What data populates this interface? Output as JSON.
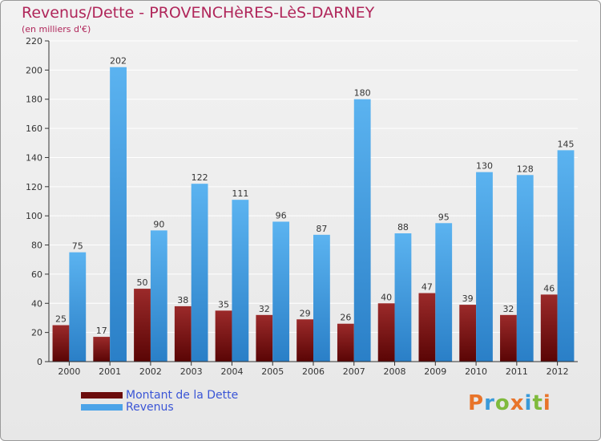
{
  "title": "Revenus/Dette - PROVENCHèRES-LèS-DARNEY",
  "subtitle": "(en milliers d'€)",
  "legend": [
    {
      "label": "Montant de la Dette",
      "color": "#6b0c0c"
    },
    {
      "label": "Revenus",
      "color": "#4ba3e8"
    }
  ],
  "logo": {
    "text": "Proxiti"
  },
  "colors": {
    "dette_top": "#9b2a2a",
    "dette_bottom": "#5a0505",
    "revenus_top": "#5bb3f0",
    "revenus_bottom": "#2a7fc7",
    "axis": "#333333",
    "grid": "#ffffff"
  },
  "chart_data": {
    "type": "bar",
    "categories": [
      "2000",
      "2001",
      "2002",
      "2003",
      "2004",
      "2005",
      "2006",
      "2007",
      "2008",
      "2009",
      "2010",
      "2011",
      "2012"
    ],
    "series": [
      {
        "name": "Montant de la Dette",
        "values": [
          25,
          17,
          50,
          38,
          35,
          32,
          29,
          26,
          40,
          47,
          39,
          32,
          46
        ]
      },
      {
        "name": "Revenus",
        "values": [
          75,
          202,
          90,
          122,
          111,
          96,
          87,
          180,
          88,
          95,
          130,
          128,
          145
        ]
      }
    ],
    "ylim": [
      0,
      220
    ],
    "yticks": [
      0,
      20,
      40,
      60,
      80,
      100,
      120,
      140,
      160,
      180,
      200,
      220
    ],
    "grid": true,
    "legend_position": "bottom-left"
  }
}
